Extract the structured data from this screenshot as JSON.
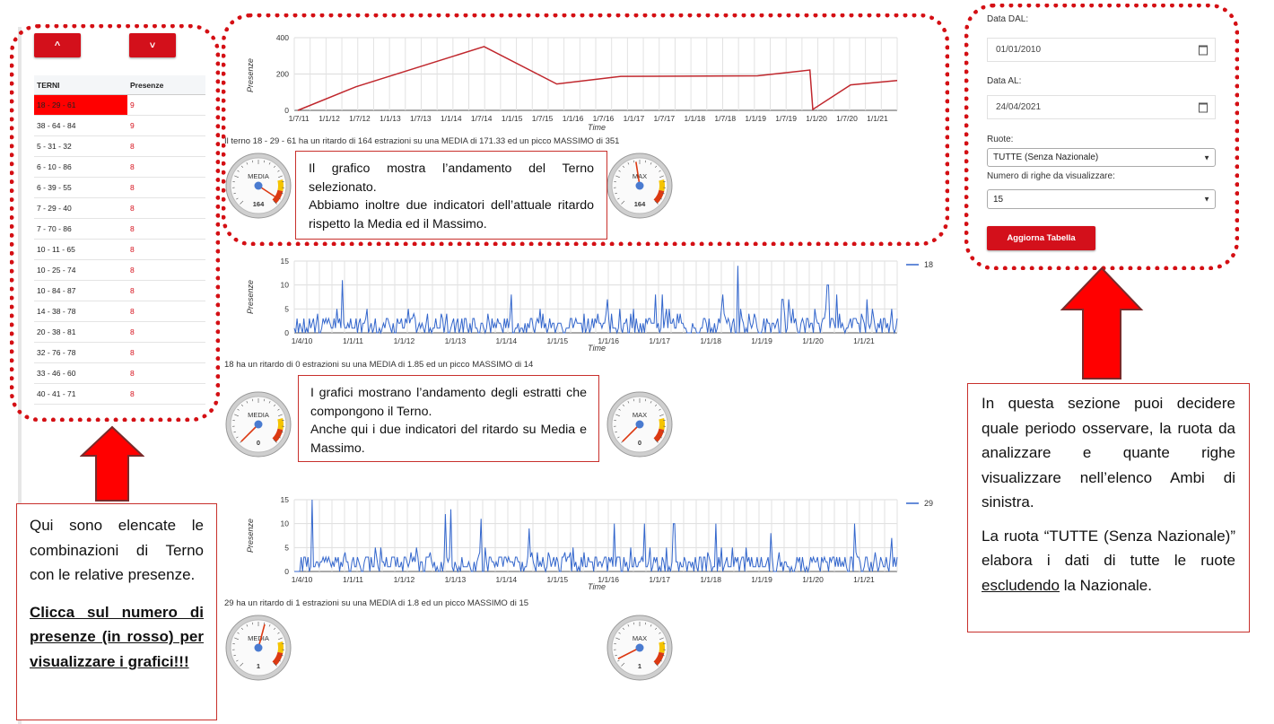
{
  "controls": {
    "up_label": "^",
    "down_label": "˅"
  },
  "table": {
    "headers": [
      "TERNI",
      "Presenze"
    ],
    "rows": [
      {
        "terno": "18 - 29 - 61",
        "presenze": "9"
      },
      {
        "terno": "38 - 64 - 84",
        "presenze": "9"
      },
      {
        "terno": "5 - 31 - 32",
        "presenze": "8"
      },
      {
        "terno": "6 - 10 - 86",
        "presenze": "8"
      },
      {
        "terno": "6 - 39 - 55",
        "presenze": "8"
      },
      {
        "terno": "7 - 29 - 40",
        "presenze": "8"
      },
      {
        "terno": "7 - 70 - 86",
        "presenze": "8"
      },
      {
        "terno": "10 - 11 - 65",
        "presenze": "8"
      },
      {
        "terno": "10 - 25 - 74",
        "presenze": "8"
      },
      {
        "terno": "10 - 84 - 87",
        "presenze": "8"
      },
      {
        "terno": "14 - 38 - 78",
        "presenze": "8"
      },
      {
        "terno": "20 - 38 - 81",
        "presenze": "8"
      },
      {
        "terno": "32 - 76 - 78",
        "presenze": "8"
      },
      {
        "terno": "33 - 46 - 60",
        "presenze": "8"
      },
      {
        "terno": "40 - 41 - 71",
        "presenze": "8"
      }
    ]
  },
  "filters": {
    "date_from_label": "Data DAL:",
    "date_from_value": "01/01/2010",
    "date_to_label": "Data AL:",
    "date_to_value": "24/04/2021",
    "ruote_label": "Ruote:",
    "ruote_value": "TUTTE (Senza Nazionale)",
    "righe_label": "Numero di righe da visualizzare:",
    "righe_value": "15",
    "update_button": "Aggiorna Tabella"
  },
  "notes": {
    "top_line1": "Il grafico mostra l’andamento del Terno selezionato.",
    "top_line2": "Abbiamo inoltre due indicatori dell’attuale ritardo rispetto la Media ed il Massimo.",
    "mid_line1": "I grafici mostrano l’andamento degli estratti che compongono il Terno.",
    "mid_line2": "Anche qui i due indicatori del ritardo su Media e Massimo.",
    "left_p1": "Qui sono elencate le combinazioni di Terno con le relative presenze.",
    "left_p2": "Clicca sul numero di presenze (in rosso) per visualizzare i grafici!!!",
    "right_p1": "In questa sezione puoi decidere quale periodo osservare, la ruota da analizzare e quante righe visualizzare nell’elenco Ambi di sinistra.",
    "right_p2_a": "La ruota “TUTTE (Senza Nazionale)” elabora i dati di tutte le ruote ",
    "right_p2_u": "escludendo",
    "right_p2_b": " la Nazionale."
  },
  "stats": {
    "terno": "Il terno 18 - 29 - 61 ha un ritardo di 164 estrazioni su una MEDIA di 171.33 ed un picco MASSIMO di 351",
    "n18": "18 ha un ritardo di 0 estrazioni su una MEDIA di 1.85 ed un picco MASSIMO di 14",
    "n29": "29 ha un ritardo di 1 estrazioni su una MEDIA di 1.8 ed un picco MASSIMO di 15"
  },
  "gauges": [
    {
      "id": "g1",
      "label": "MEDIA",
      "value": 164,
      "max": 171.33,
      "display": "164"
    },
    {
      "id": "g2",
      "label": "MAX",
      "value": 164,
      "max": 351,
      "display": "164"
    },
    {
      "id": "g3",
      "label": "MEDIA",
      "value": 0,
      "max": 1.85,
      "display": "0"
    },
    {
      "id": "g4",
      "label": "MAX",
      "value": 0,
      "max": 14,
      "display": "0"
    },
    {
      "id": "g5",
      "label": "MEDIA",
      "value": 1,
      "max": 1.8,
      "display": "1"
    },
    {
      "id": "g6",
      "label": "MAX",
      "value": 1,
      "max": 15,
      "display": "1"
    }
  ],
  "colors": {
    "accent": "#d3101b",
    "terno_line": "#c0272d",
    "series_line": "#3366cc",
    "dotted": "#d40f14"
  },
  "chart_data": [
    {
      "id": "terno",
      "type": "line",
      "xlabel": "Time",
      "ylabel": "Presenze",
      "ylim": [
        0,
        400
      ],
      "yticks": [
        0,
        200,
        400
      ],
      "xticks": [
        "1/7/11",
        "1/1/12",
        "1/7/12",
        "1/1/13",
        "1/7/13",
        "1/1/14",
        "1/7/14",
        "1/1/15",
        "1/7/15",
        "1/1/16",
        "1/7/16",
        "1/1/17",
        "1/7/17",
        "1/1/18",
        "1/7/18",
        "1/1/19",
        "1/7/19",
        "1/1/20",
        "1/7/20",
        "1/1/21"
      ],
      "x": [
        0,
        2,
        6.4,
        8.9,
        11.1,
        15.8,
        17.6,
        17.7,
        19.0,
        20.6
      ],
      "y": [
        0,
        130,
        351,
        145,
        187,
        190,
        222,
        5,
        140,
        164
      ],
      "grid": true,
      "legend": null
    },
    {
      "id": "n18",
      "type": "line",
      "xlabel": "Time",
      "ylabel": "Presenze",
      "ylim": [
        0,
        15
      ],
      "yticks": [
        0,
        5,
        10,
        15
      ],
      "xticks": [
        "1/4/10",
        "1/1/11",
        "1/1/12",
        "1/1/13",
        "1/1/14",
        "1/1/15",
        "1/1/16",
        "1/1/17",
        "1/1/18",
        "1/1/19",
        "1/1/20",
        "1/1/21"
      ],
      "series": [
        {
          "name": "18",
          "peaks": [
            [
              0.08,
              11
            ],
            [
              0.36,
              8
            ],
            [
              0.52,
              7
            ],
            [
              0.61,
              8
            ],
            [
              0.6,
              8
            ],
            [
              0.71,
              8
            ],
            [
              0.735,
              14
            ],
            [
              0.82,
              7
            ],
            [
              0.81,
              7
            ],
            [
              0.885,
              10
            ],
            [
              0.9,
              8
            ],
            [
              0.95,
              7
            ]
          ]
        }
      ],
      "grid": true,
      "legend": "right"
    },
    {
      "id": "n29",
      "type": "line",
      "xlabel": "Time",
      "ylabel": "Presenze",
      "ylim": [
        0,
        15
      ],
      "yticks": [
        0,
        5,
        10,
        15
      ],
      "xticks": [
        "1/4/10",
        "1/1/11",
        "1/1/12",
        "1/1/13",
        "1/1/14",
        "1/1/15",
        "1/1/16",
        "1/1/17",
        "1/1/18",
        "1/1/19",
        "1/1/20",
        "1/1/21"
      ],
      "series": [
        {
          "name": "29",
          "peaks": [
            [
              0.03,
              15
            ],
            [
              0.25,
              12
            ],
            [
              0.26,
              13
            ],
            [
              0.31,
              11
            ],
            [
              0.39,
              9
            ],
            [
              0.53,
              10
            ],
            [
              0.58,
              10
            ],
            [
              0.63,
              10
            ],
            [
              0.7,
              10
            ],
            [
              0.79,
              8
            ],
            [
              0.93,
              10
            ],
            [
              0.99,
              7
            ]
          ]
        }
      ],
      "grid": true,
      "legend": "right"
    }
  ]
}
